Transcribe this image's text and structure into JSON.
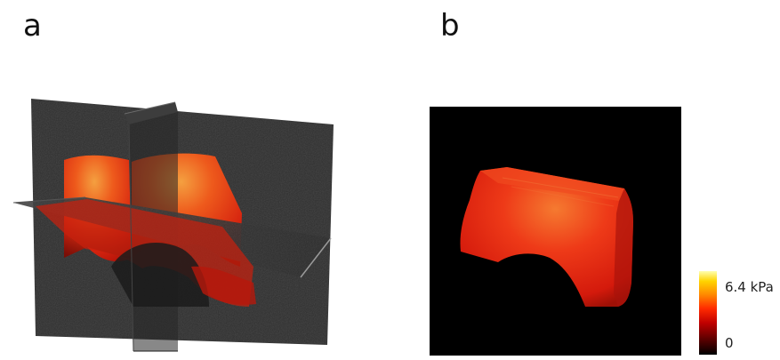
{
  "figure": {
    "panel_a_label": "a",
    "panel_b_label": "b"
  },
  "colorbar": {
    "max_label": "6.4 kPa",
    "min_label": "0",
    "max_value_kpa": 6.4,
    "min_value_kpa": 0,
    "colormap": "hot",
    "stops": [
      "#000000",
      "#5a0000",
      "#c00000",
      "#ff2a00",
      "#ff8a00",
      "#ffd400",
      "#ffffb0"
    ]
  },
  "colors": {
    "slice_plane": "#2f2f2f",
    "tissue_base": "#d81e10",
    "tissue_highlight": "#f08030",
    "panel_b_background": "#000000"
  }
}
